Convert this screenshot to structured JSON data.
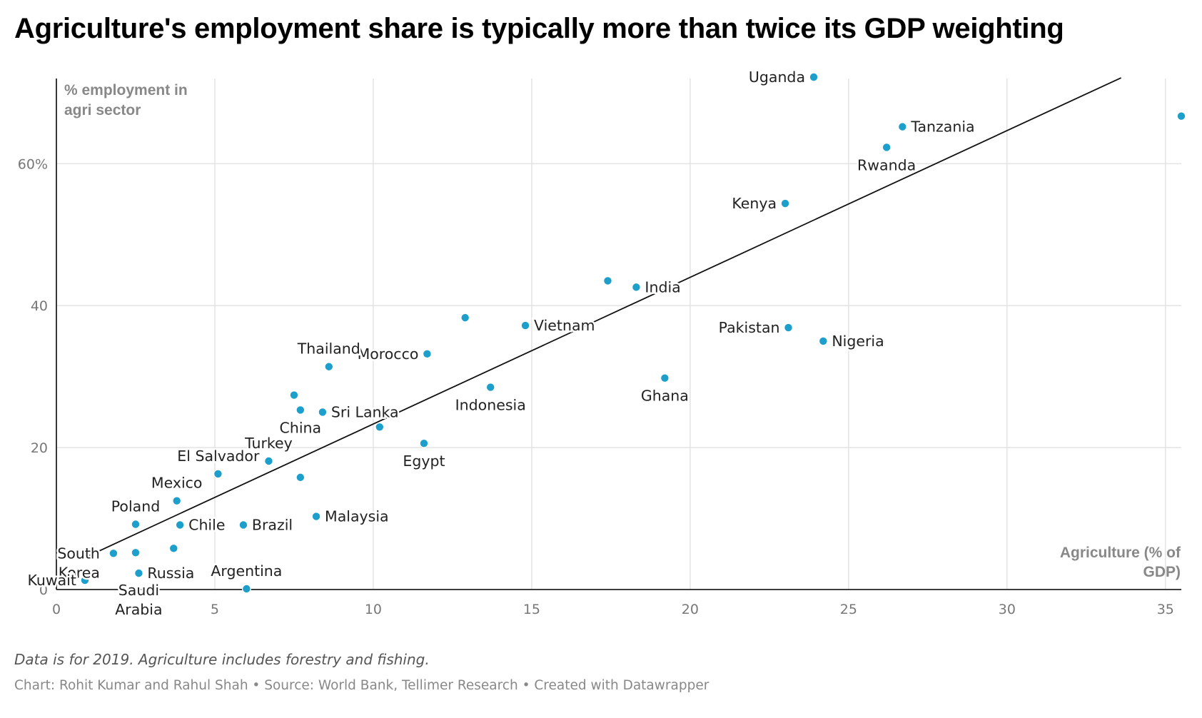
{
  "title": "Agriculture's employment share is typically more than twice its GDP weighting",
  "notes": "Data is for 2019. Agriculture includes forestry and fishing.",
  "credits": "Chart: Rohit Kumar and Rahul Shah • Source: World Bank, Tellimer Research • Created with Datawrapper",
  "chart_data": {
    "type": "scatter",
    "xlabel": "Agriculture (% of GDP)",
    "ylabel": "% employment in agri sector",
    "xlim": [
      0,
      35.5
    ],
    "ylim": [
      0,
      72
    ],
    "x_ticks": [
      {
        "value": 0,
        "label": "0"
      },
      {
        "value": 5,
        "label": "5"
      },
      {
        "value": 10,
        "label": "10"
      },
      {
        "value": 15,
        "label": "15"
      },
      {
        "value": 20,
        "label": "20"
      },
      {
        "value": 25,
        "label": "25"
      },
      {
        "value": 30,
        "label": "30"
      },
      {
        "value": 35,
        "label": "35"
      }
    ],
    "y_ticks": [
      {
        "value": 0,
        "label": "0"
      },
      {
        "value": 20,
        "label": "20"
      },
      {
        "value": 40,
        "label": "40"
      },
      {
        "value": 60,
        "label": "60%"
      }
    ],
    "grid": true,
    "point_color": "#1d9fcc",
    "trendline": {
      "x": [
        0.8,
        33.6
      ],
      "y": [
        4.3,
        72.1
      ]
    },
    "points": [
      {
        "label": "Uganda",
        "x": 23.9,
        "y": 72.2,
        "label_pos": "left"
      },
      {
        "label": "",
        "x": 35.5,
        "y": 66.7,
        "label_pos": "none"
      },
      {
        "label": "Tanzania",
        "x": 26.7,
        "y": 65.2,
        "label_pos": "right"
      },
      {
        "label": "Rwanda",
        "x": 26.2,
        "y": 62.3,
        "label_pos": "below"
      },
      {
        "label": "Kenya",
        "x": 23.0,
        "y": 54.4,
        "label_pos": "left"
      },
      {
        "label": "",
        "x": 17.4,
        "y": 43.5,
        "label_pos": "none"
      },
      {
        "label": "India",
        "x": 18.3,
        "y": 42.6,
        "label_pos": "right"
      },
      {
        "label": "",
        "x": 12.9,
        "y": 38.3,
        "label_pos": "none"
      },
      {
        "label": "Vietnam",
        "x": 14.8,
        "y": 37.2,
        "label_pos": "right"
      },
      {
        "label": "Pakistan",
        "x": 23.1,
        "y": 36.9,
        "label_pos": "left"
      },
      {
        "label": "Nigeria",
        "x": 24.2,
        "y": 35.0,
        "label_pos": "right"
      },
      {
        "label": "Morocco",
        "x": 11.7,
        "y": 33.2,
        "label_pos": "left"
      },
      {
        "label": "Thailand",
        "x": 8.6,
        "y": 31.4,
        "label_pos": "above"
      },
      {
        "label": "Ghana",
        "x": 19.2,
        "y": 29.8,
        "label_pos": "below"
      },
      {
        "label": "Indonesia",
        "x": 13.7,
        "y": 28.5,
        "label_pos": "below"
      },
      {
        "label": "",
        "x": 7.5,
        "y": 27.4,
        "label_pos": "none"
      },
      {
        "label": "China",
        "x": 7.7,
        "y": 25.3,
        "label_pos": "below"
      },
      {
        "label": "Sri Lanka",
        "x": 8.4,
        "y": 25.0,
        "label_pos": "right"
      },
      {
        "label": "",
        "x": 10.2,
        "y": 22.9,
        "label_pos": "none"
      },
      {
        "label": "Egypt",
        "x": 11.6,
        "y": 20.6,
        "label_pos": "below"
      },
      {
        "label": "Turkey",
        "x": 6.7,
        "y": 18.1,
        "label_pos": "above"
      },
      {
        "label": "El Salvador",
        "x": 5.1,
        "y": 16.3,
        "label_pos": "aboveleft"
      },
      {
        "label": "",
        "x": 7.7,
        "y": 15.8,
        "label_pos": "none"
      },
      {
        "label": "Mexico",
        "x": 3.8,
        "y": 12.5,
        "label_pos": "above"
      },
      {
        "label": "Malaysia",
        "x": 8.2,
        "y": 10.3,
        "label_pos": "right"
      },
      {
        "label": "Poland",
        "x": 2.5,
        "y": 9.2,
        "label_pos": "above"
      },
      {
        "label": "Chile",
        "x": 3.9,
        "y": 9.1,
        "label_pos": "right"
      },
      {
        "label": "Brazil",
        "x": 5.9,
        "y": 9.1,
        "label_pos": "right"
      },
      {
        "label": "",
        "x": 3.7,
        "y": 5.8,
        "label_pos": "none"
      },
      {
        "label": "South Korea",
        "x": 1.8,
        "y": 5.1,
        "label_pos": "left2"
      },
      {
        "label": "",
        "x": 2.5,
        "y": 5.2,
        "label_pos": "none"
      },
      {
        "label": "Russia",
        "x": 2.6,
        "y": 2.3,
        "label_pos": "right"
      },
      {
        "label": "Kuwait",
        "x": 0.9,
        "y": 1.3,
        "label_pos": "left"
      },
      {
        "label": "Saudi Arabia",
        "x": 2.6,
        "y": 2.3,
        "label_pos": "below2"
      },
      {
        "label": "Argentina",
        "x": 6.0,
        "y": 0.1,
        "label_pos": "above"
      }
    ]
  }
}
